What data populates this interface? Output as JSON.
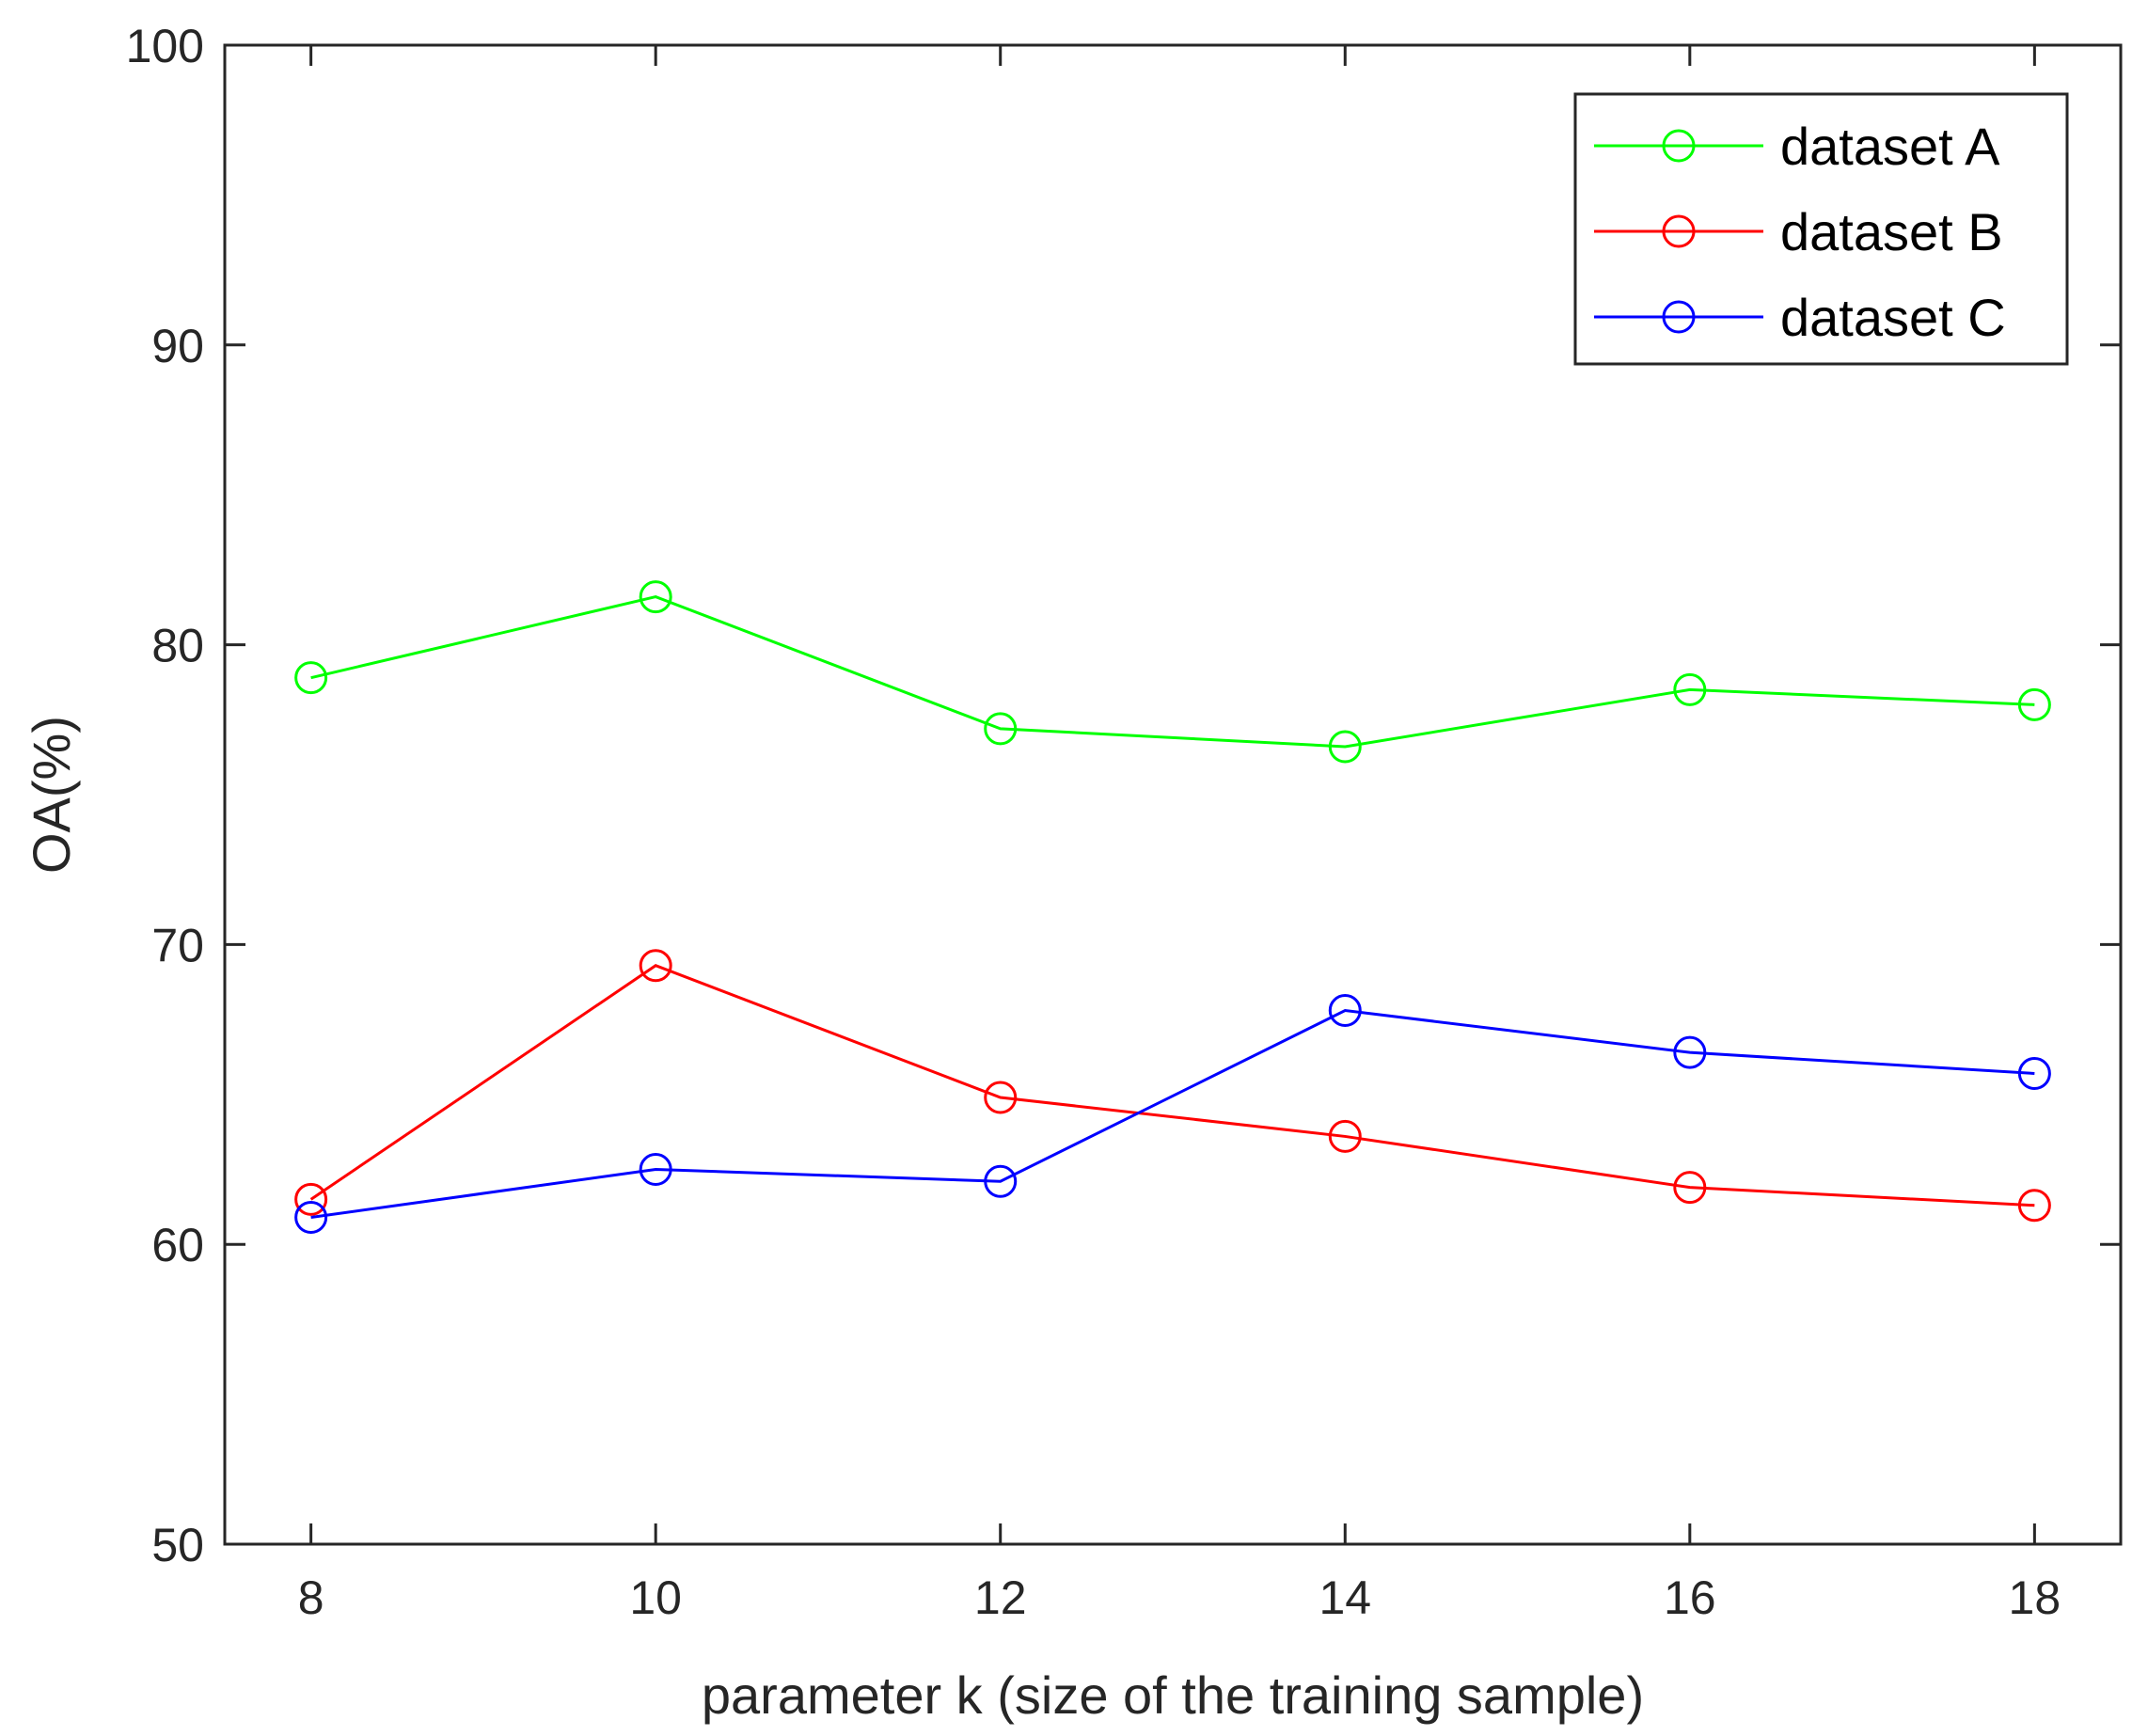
{
  "chart_data": {
    "type": "line",
    "title": "",
    "xlabel": "parameter k (size of the training sample)",
    "ylabel": "OA(%)",
    "x": [
      8,
      10,
      12,
      14,
      16,
      18
    ],
    "xlim": [
      7.5,
      18.5
    ],
    "ylim": [
      50,
      100
    ],
    "xticks": [
      "8",
      "10",
      "12",
      "14",
      "16",
      "18"
    ],
    "yticks": [
      "50",
      "60",
      "70",
      "80",
      "90",
      "100"
    ],
    "grid": false,
    "legend_position": "top-right",
    "marker": "circle",
    "series": [
      {
        "name": "dataset A",
        "color": "#00ff00",
        "values": [
          78.9,
          81.6,
          77.2,
          76.6,
          78.5,
          78.0
        ]
      },
      {
        "name": "dataset B",
        "color": "#ff0000",
        "values": [
          61.5,
          69.3,
          64.9,
          63.6,
          61.9,
          61.3
        ]
      },
      {
        "name": "dataset C",
        "color": "#0000ff",
        "values": [
          60.9,
          62.5,
          62.1,
          67.8,
          66.4,
          65.7
        ]
      }
    ]
  }
}
